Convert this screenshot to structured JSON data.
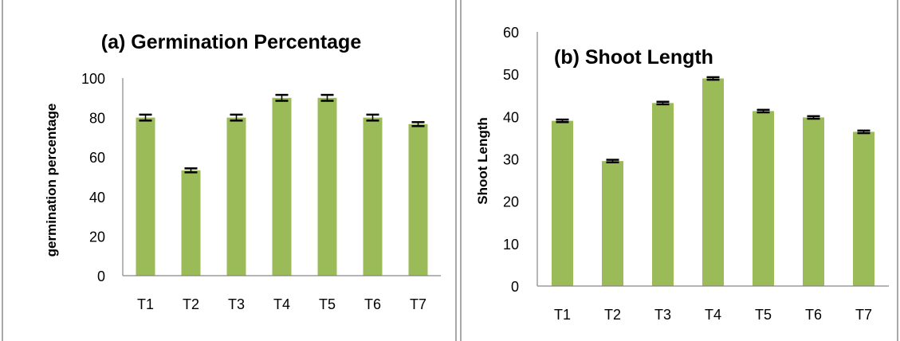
{
  "chart_data": [
    {
      "type": "bar",
      "title": "(a) Germination Percentage",
      "xlabel": "",
      "ylabel": "germination percentage",
      "categories": [
        "T1",
        "T2",
        "T3",
        "T4",
        "T5",
        "T6",
        "T7"
      ],
      "values": [
        80,
        53.3,
        80,
        90,
        90,
        80,
        76.7
      ],
      "errors": [
        1.5,
        1.0,
        1.5,
        1.5,
        1.5,
        1.5,
        1.0
      ],
      "ylim": [
        0,
        100
      ],
      "yticks": [
        "0",
        "20",
        "40",
        "60",
        "80",
        "100"
      ],
      "bar_color": "#9bbb59",
      "error_bar_color": "#000000",
      "grid": false,
      "legend": "none"
    },
    {
      "type": "bar",
      "title": "(b) Shoot Length",
      "xlabel": "",
      "ylabel": "Shoot Length",
      "categories": [
        "T1",
        "T2",
        "T3",
        "T4",
        "T5",
        "T6",
        "T7"
      ],
      "values": [
        39,
        29.5,
        43.2,
        49,
        41.3,
        39.8,
        36.4
      ],
      "errors": [
        0.3,
        0.3,
        0.3,
        0.3,
        0.3,
        0.3,
        0.3
      ],
      "ylim": [
        0,
        60
      ],
      "yticks": [
        "0",
        "10",
        "20",
        "30",
        "40",
        "50",
        "60"
      ],
      "bar_color": "#9bbb59",
      "error_bar_color": "#000000",
      "grid": false,
      "legend": "none"
    }
  ]
}
